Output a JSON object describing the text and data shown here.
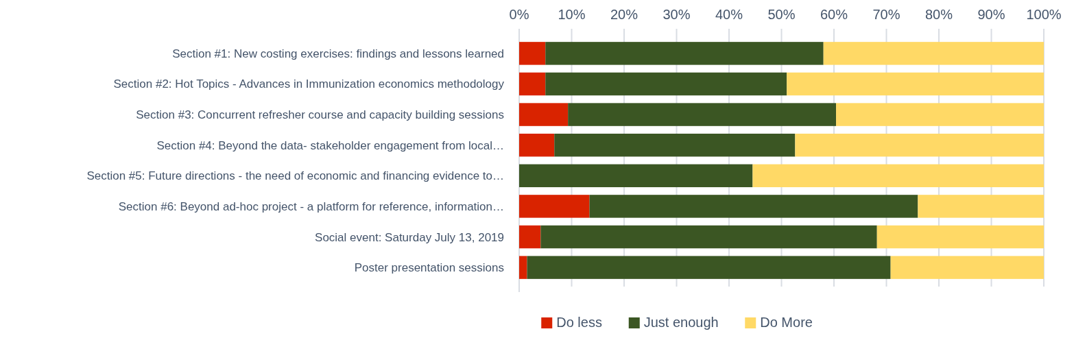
{
  "chart_data": {
    "type": "bar",
    "orientation": "horizontal",
    "stacked": true,
    "categories": [
      "Section #1: New costing exercises: findings and lessons learned",
      "Section #2: Hot Topics - Advances in Immunization economics methodology",
      "Section #3: Concurrent refresher course and capacity building sessions",
      "Section #4: Beyond the data- stakeholder engagement from local…",
      "Section #5: Future directions - the need of economic and financing evidence to…",
      "Section #6: Beyond ad-hoc project - a platform for reference, information…",
      "Social event: Saturday July 13, 2019",
      "Poster presentation sessions"
    ],
    "series": [
      {
        "name": "Do less",
        "color": "#d92300",
        "values": [
          5,
          5,
          9.3,
          6.7,
          0,
          13.4,
          4.1,
          1.5
        ]
      },
      {
        "name": "Just enough",
        "color": "#3b5623",
        "values": [
          53,
          46,
          51.1,
          45.9,
          44.5,
          62.6,
          64.1,
          69.3
        ]
      },
      {
        "name": "Do More",
        "color": "#ffd966",
        "values": [
          42,
          49,
          39.6,
          47.4,
          55.5,
          24,
          31.8,
          29.2
        ]
      }
    ],
    "xlim": [
      0,
      100
    ],
    "xticks": [
      {
        "value": 0,
        "label": "0%"
      },
      {
        "value": 10,
        "label": "10%"
      },
      {
        "value": 20,
        "label": "20%"
      },
      {
        "value": 30,
        "label": "30%"
      },
      {
        "value": 40,
        "label": "40%"
      },
      {
        "value": 50,
        "label": "50%"
      },
      {
        "value": 60,
        "label": "60%"
      },
      {
        "value": 70,
        "label": "70%"
      },
      {
        "value": 80,
        "label": "80%"
      },
      {
        "value": 90,
        "label": "90%"
      },
      {
        "value": 100,
        "label": "100%"
      }
    ],
    "grid": "x",
    "legend": "bottom"
  }
}
